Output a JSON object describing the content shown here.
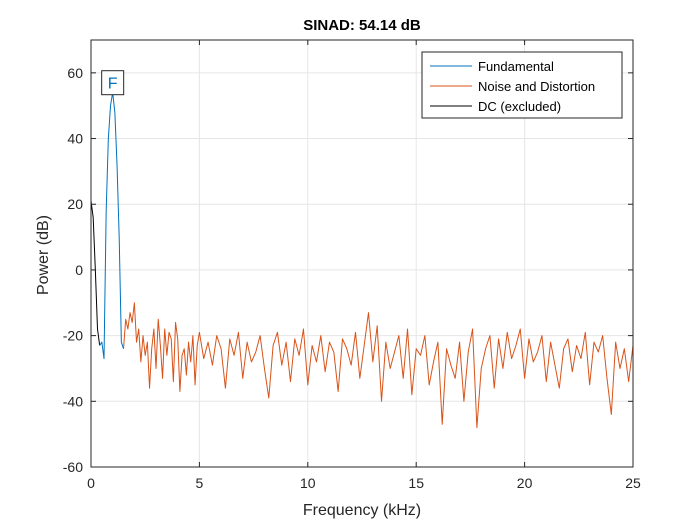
{
  "chart_data": {
    "type": "line",
    "title": "SINAD:  54.14 dB",
    "xlabel": "Frequency (kHz)",
    "ylabel": "Power (dB)",
    "xlim": [
      0,
      25
    ],
    "ylim": [
      -60,
      70
    ],
    "xticks": [
      0,
      5,
      10,
      15,
      20,
      25
    ],
    "yticks": [
      -60,
      -40,
      -20,
      0,
      20,
      40,
      60
    ],
    "grid": true,
    "legend_position": "top-right",
    "colors": {
      "Fundamental": "#0072BD",
      "Noise and Distortion": "#D95319",
      "DC (excluded)": "#000000"
    },
    "series": [
      {
        "name": "DC (excluded)",
        "x": [
          0,
          0.1,
          0.2,
          0.3,
          0.4
        ],
        "y": [
          21,
          16,
          0,
          -18,
          -23
        ]
      },
      {
        "name": "Fundamental",
        "x": [
          0.4,
          0.5,
          0.6,
          0.7,
          0.8,
          0.9,
          1.0,
          1.1,
          1.2,
          1.3,
          1.4,
          1.5
        ],
        "y": [
          -23,
          -22,
          -27,
          18,
          40,
          50,
          54,
          48,
          32,
          10,
          -22,
          -24
        ]
      },
      {
        "name": "Noise and Distortion",
        "x": [
          1.5,
          1.6,
          1.7,
          1.8,
          1.9,
          2.0,
          2.1,
          2.2,
          2.3,
          2.4,
          2.5,
          2.6,
          2.7,
          2.8,
          2.9,
          3.0,
          3.1,
          3.2,
          3.3,
          3.4,
          3.5,
          3.6,
          3.7,
          3.8,
          3.9,
          4.0,
          4.1,
          4.2,
          4.3,
          4.4,
          4.5,
          4.6,
          4.7,
          4.8,
          4.9,
          5.0,
          5.2,
          5.4,
          5.6,
          5.8,
          6.0,
          6.2,
          6.4,
          6.6,
          6.8,
          7.0,
          7.2,
          7.4,
          7.6,
          7.8,
          8.0,
          8.2,
          8.4,
          8.6,
          8.8,
          9.0,
          9.2,
          9.4,
          9.6,
          9.8,
          10.0,
          10.2,
          10.4,
          10.6,
          10.8,
          11.0,
          11.2,
          11.4,
          11.6,
          11.8,
          12.0,
          12.2,
          12.4,
          12.6,
          12.8,
          13.0,
          13.2,
          13.4,
          13.6,
          13.8,
          14.0,
          14.2,
          14.4,
          14.6,
          14.8,
          15.0,
          15.2,
          15.4,
          15.6,
          15.8,
          16.0,
          16.2,
          16.4,
          16.6,
          16.8,
          17.0,
          17.2,
          17.4,
          17.6,
          17.8,
          18.0,
          18.2,
          18.4,
          18.6,
          18.8,
          19.0,
          19.2,
          19.4,
          19.6,
          19.8,
          20.0,
          20.2,
          20.4,
          20.6,
          20.8,
          21.0,
          21.2,
          21.4,
          21.6,
          21.8,
          22.0,
          22.2,
          22.4,
          22.6,
          22.8,
          23.0,
          23.2,
          23.4,
          23.6,
          23.8,
          24.0,
          24.2,
          24.4,
          24.6,
          24.8,
          25.0
        ],
        "y": [
          -24,
          -15,
          -18,
          -13,
          -16,
          -10,
          -22,
          -18,
          -28,
          -20,
          -26,
          -22,
          -36,
          -24,
          -18,
          -30,
          -15,
          -23,
          -33,
          -18,
          -26,
          -19,
          -21,
          -34,
          -16,
          -21,
          -37,
          -26,
          -24,
          -32,
          -22,
          -28,
          -20,
          -35,
          -23,
          -19,
          -27,
          -22,
          -29,
          -20,
          -24,
          -36,
          -21,
          -26,
          -19,
          -33,
          -22,
          -28,
          -25,
          -20,
          -30,
          -39,
          -23,
          -19,
          -29,
          -22,
          -34,
          -21,
          -26,
          -18,
          -35,
          -23,
          -28,
          -20,
          -31,
          -22,
          -25,
          -37,
          -21,
          -24,
          -29,
          -19,
          -33,
          -23,
          -13,
          -28,
          -17,
          -40,
          -22,
          -30,
          -25,
          -20,
          -33,
          -18,
          -38,
          -24,
          -26,
          -20,
          -35,
          -28,
          -22,
          -47,
          -24,
          -29,
          -33,
          -22,
          -40,
          -25,
          -18,
          -48,
          -30,
          -24,
          -20,
          -36,
          -21,
          -30,
          -19,
          -27,
          -23,
          -18,
          -33,
          -21,
          -28,
          -25,
          -20,
          -34,
          -22,
          -29,
          -36,
          -24,
          -21,
          -31,
          -23,
          -27,
          -19,
          -35,
          -22,
          -25,
          -20,
          -33,
          -44,
          -22,
          -30,
          -24,
          -34,
          -23
        ]
      }
    ],
    "annotations": [
      {
        "text": "F",
        "x": 1.0,
        "y": 57
      }
    ]
  }
}
